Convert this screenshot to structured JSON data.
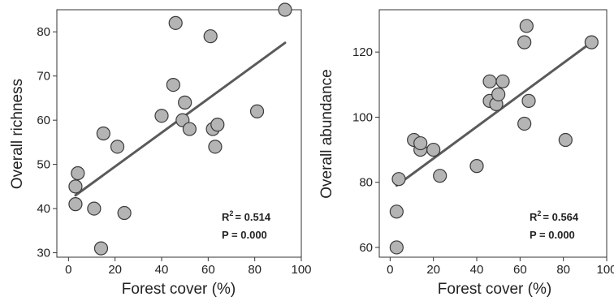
{
  "chart_data": [
    {
      "type": "scatter",
      "xlabel": "Forest cover (%)",
      "ylabel": "Overall richness",
      "xlim": [
        -5,
        100
      ],
      "ylim": [
        29,
        85
      ],
      "xticks": [
        0,
        20,
        40,
        60,
        80,
        100
      ],
      "yticks": [
        30,
        40,
        50,
        60,
        70,
        80
      ],
      "grid": false,
      "points": [
        {
          "x": 3,
          "y": 45
        },
        {
          "x": 4,
          "y": 48
        },
        {
          "x": 3,
          "y": 41
        },
        {
          "x": 11,
          "y": 40
        },
        {
          "x": 14,
          "y": 31
        },
        {
          "x": 15,
          "y": 57
        },
        {
          "x": 21,
          "y": 54
        },
        {
          "x": 24,
          "y": 39
        },
        {
          "x": 40,
          "y": 61
        },
        {
          "x": 45,
          "y": 68
        },
        {
          "x": 46,
          "y": 82
        },
        {
          "x": 49,
          "y": 60
        },
        {
          "x": 50,
          "y": 64
        },
        {
          "x": 52,
          "y": 58
        },
        {
          "x": 61,
          "y": 79
        },
        {
          "x": 62,
          "y": 58
        },
        {
          "x": 63,
          "y": 54
        },
        {
          "x": 64,
          "y": 59
        },
        {
          "x": 81,
          "y": 62
        },
        {
          "x": 93,
          "y": 85
        }
      ],
      "trendline": {
        "x": [
          3,
          93
        ],
        "y": [
          43,
          77.5
        ]
      },
      "annotations": {
        "r2_prefix": "R",
        "r2_sup": "2",
        "r2_value": "=  0.514",
        "p_value": "P = 0.000"
      }
    },
    {
      "type": "scatter",
      "xlabel": "Forest cover (%)",
      "ylabel": "Overall abundance",
      "xlim": [
        -5,
        100
      ],
      "ylim": [
        57,
        133
      ],
      "xticks": [
        0,
        20,
        40,
        60,
        80,
        100
      ],
      "yticks": [
        60,
        80,
        100,
        120
      ],
      "grid": false,
      "points": [
        {
          "x": 3,
          "y": 60
        },
        {
          "x": 3,
          "y": 71
        },
        {
          "x": 4,
          "y": 81
        },
        {
          "x": 11,
          "y": 93
        },
        {
          "x": 14,
          "y": 90
        },
        {
          "x": 14,
          "y": 92
        },
        {
          "x": 20,
          "y": 90
        },
        {
          "x": 23,
          "y": 82
        },
        {
          "x": 40,
          "y": 85
        },
        {
          "x": 46,
          "y": 111
        },
        {
          "x": 46,
          "y": 105
        },
        {
          "x": 49,
          "y": 104
        },
        {
          "x": 50,
          "y": 107
        },
        {
          "x": 52,
          "y": 111
        },
        {
          "x": 62,
          "y": 98
        },
        {
          "x": 62,
          "y": 123
        },
        {
          "x": 63,
          "y": 128
        },
        {
          "x": 64,
          "y": 105
        },
        {
          "x": 81,
          "y": 93
        },
        {
          "x": 93,
          "y": 123
        }
      ],
      "trendline": {
        "x": [
          3,
          93
        ],
        "y": [
          79,
          123
        ]
      },
      "annotations": {
        "r2_prefix": "R",
        "r2_sup": "2",
        "r2_value": "=  0.564",
        "p_value": "P = 0.000"
      }
    }
  ]
}
